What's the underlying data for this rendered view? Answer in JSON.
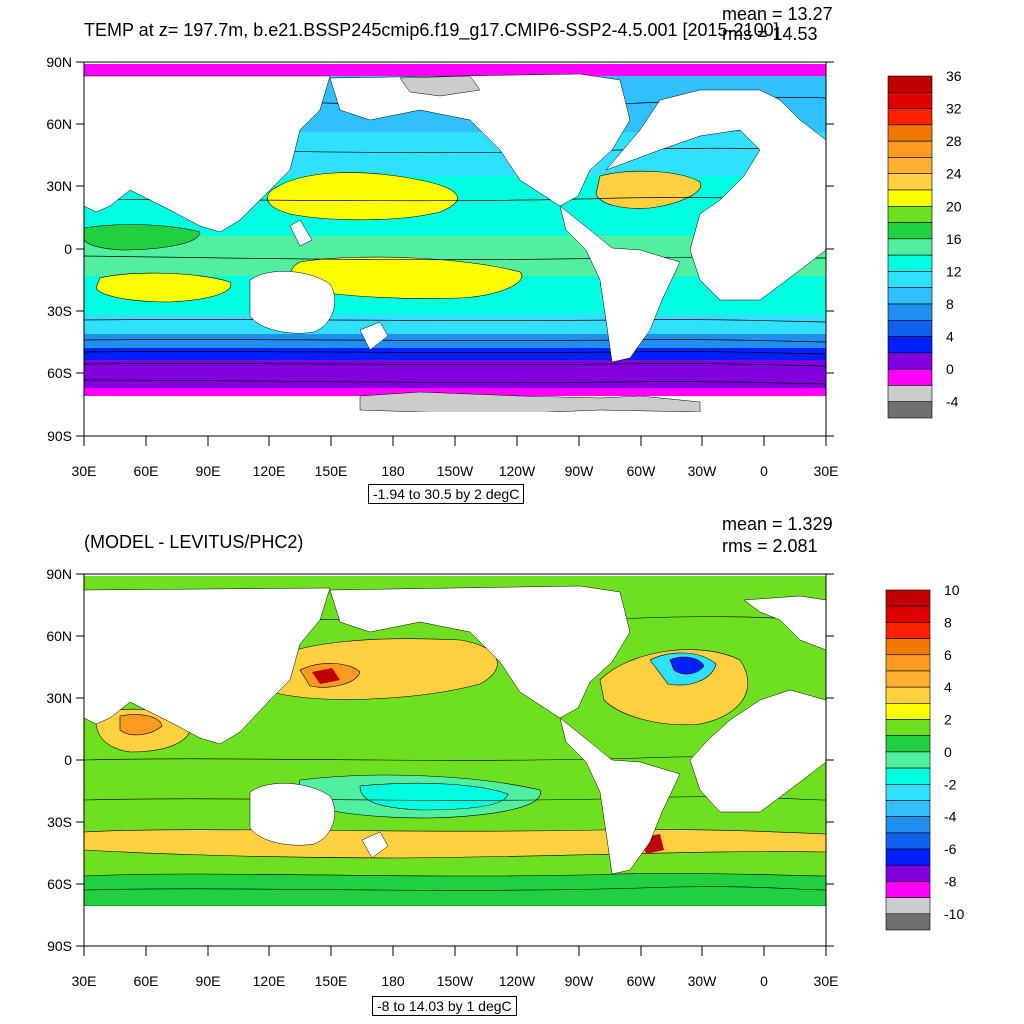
{
  "top_panel": {
    "title": "TEMP at z= 197.7m, b.e21.BSSP245cmip6.f19_g17.CMIP6-SSP2-4.5.001 [2015-2100]",
    "mean_label": "mean = 13.27",
    "rms_label": "rms = 14.53",
    "info": "-1.94 to 30.5 by 2 degC",
    "lat_labels": [
      "90N",
      "60N",
      "30N",
      "0",
      "30S",
      "60S",
      "90S"
    ],
    "lon_labels": [
      "30E",
      "60E",
      "90E",
      "120E",
      "150E",
      "180",
      "150W",
      "120W",
      "90W",
      "60W",
      "30W",
      "0",
      "30E"
    ],
    "colorbar": {
      "labels": [
        "36",
        "32",
        "28",
        "24",
        "20",
        "16",
        "12",
        "8",
        "4",
        "0",
        "-4"
      ],
      "colors": [
        "#c00000",
        "#e00000",
        "#ff2000",
        "#f07800",
        "#ff9a20",
        "#ffb030",
        "#ffd040",
        "#ffff00",
        "#6ee020",
        "#20d040",
        "#50f0a0",
        "#00ffe0",
        "#30e0ff",
        "#30c0ff",
        "#2090f0",
        "#1060f0",
        "#0020ff",
        "#8000e0",
        "#ff00ff",
        "#cccccc",
        "#707070"
      ]
    }
  },
  "bottom_panel": {
    "title": "(MODEL - LEVITUS/PHC2)",
    "mean_label": "mean = 1.329",
    "rms_label": "rms = 2.081",
    "info": "-8 to 14.03 by 1 degC",
    "lat_labels": [
      "90N",
      "60N",
      "30N",
      "0",
      "30S",
      "60S",
      "90S"
    ],
    "lon_labels": [
      "30E",
      "60E",
      "90E",
      "120E",
      "150E",
      "180",
      "150W",
      "120W",
      "90W",
      "60W",
      "30W",
      "0",
      "30E"
    ],
    "colorbar": {
      "labels": [
        "10",
        "8",
        "6",
        "4",
        "2",
        "0",
        "-2",
        "-4",
        "-6",
        "-8",
        "-10"
      ],
      "colors": [
        "#c00000",
        "#e00000",
        "#ff2000",
        "#f07800",
        "#ff9a20",
        "#ffb030",
        "#ffd040",
        "#ffff00",
        "#6ee020",
        "#20d040",
        "#50f0a0",
        "#00ffe0",
        "#30e0ff",
        "#30c0ff",
        "#2090f0",
        "#1060f0",
        "#0020ff",
        "#8000e0",
        "#ff00ff",
        "#cccccc",
        "#707070"
      ]
    }
  }
}
